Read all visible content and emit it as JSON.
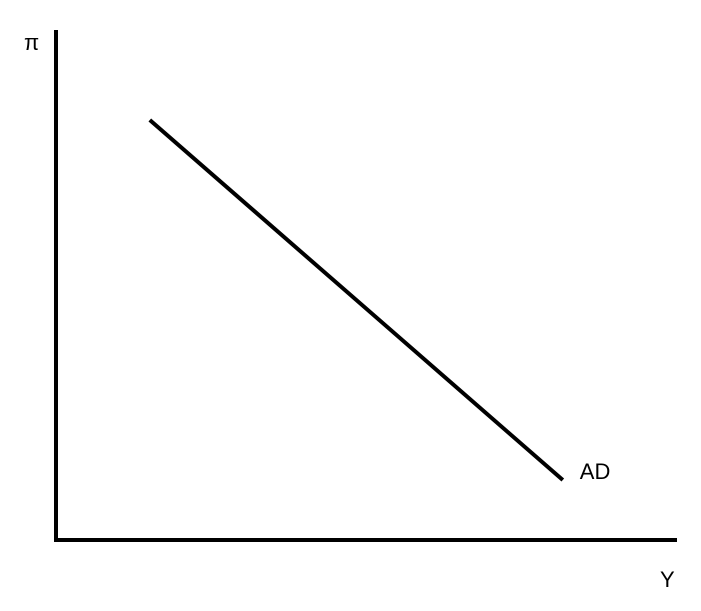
{
  "chart_data": {
    "type": "line",
    "title": "",
    "xlabel": "Y",
    "ylabel": "π",
    "series": [
      {
        "name": "AD",
        "x": [
          1.0,
          5.4
        ],
        "y": [
          4.2,
          0.6
        ]
      }
    ],
    "xlim": [
      0,
      6.5
    ],
    "ylim": [
      0,
      5
    ],
    "grid": false,
    "legend": "none",
    "colors": {
      "axis": "#000000",
      "line": "#000000",
      "background": "#ffffff"
    }
  }
}
